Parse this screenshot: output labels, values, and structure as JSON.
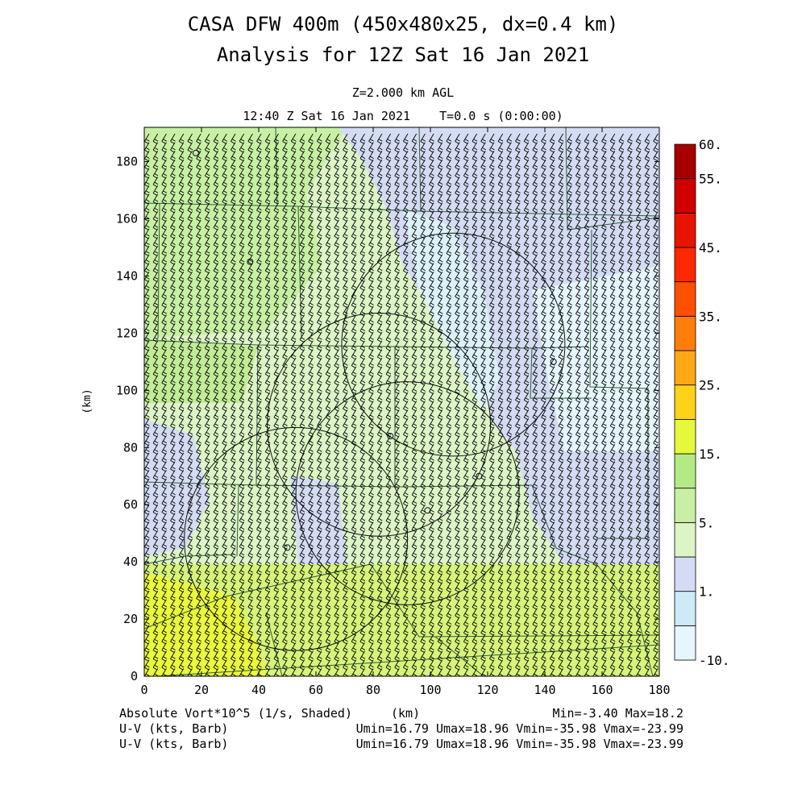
{
  "title_line1": "CASA DFW 400m (450x480x25, dx=0.4 km)",
  "title_line2": "Analysis for 12Z Sat 16 Jan 2021",
  "subtitle_level": "Z=2.000 km AGL",
  "subtitle_time": "12:40 Z Sat 16 Jan 2021    T=0.0 s (0:00:00)",
  "footer": {
    "field_label": "Absolute Vort*10^5 (1/s, Shaded)",
    "xunit": "(km)",
    "minmax": "Min=-3.40 Max=18.2",
    "barb_label_1": "U-V (kts, Barb)",
    "barb_label_2": "U-V (kts, Barb)",
    "uv_stats_1": "Umin=16.79 Umax=18.96 Vmin=-35.98 Vmax=-23.99",
    "uv_stats_2": "Umin=16.79 Umax=18.96 Vmin=-35.98 Vmax=-23.99"
  },
  "chart_data": {
    "type": "heatmap",
    "xlabel": "",
    "ylabel": "(km)",
    "xlim": [
      0,
      180
    ],
    "ylim": [
      0,
      192
    ],
    "xticks": [
      0,
      20,
      40,
      60,
      80,
      100,
      120,
      140,
      160,
      180
    ],
    "yticks": [
      0,
      20,
      40,
      60,
      80,
      100,
      120,
      140,
      160,
      180
    ],
    "field": "Absolute Vort*10^5 (1/s)",
    "min": -3.4,
    "max": 18.2,
    "colorbar": {
      "levels": [
        -10,
        0,
        1,
        2,
        5,
        10,
        15,
        20,
        25,
        30,
        35,
        40,
        45,
        50,
        55,
        60
      ],
      "labels": [
        "-10.",
        "1.",
        "5.",
        "15.",
        "25.",
        "35.",
        "45.",
        "55.",
        "60."
      ],
      "colors": [
        "#e6f6fc",
        "#cfeaf7",
        "#d4dcf4",
        "#ddf5c6",
        "#c8f0a4",
        "#b4ea86",
        "#e6f83c",
        "#ffd21a",
        "#ffa814",
        "#ff7d0a",
        "#ff5000",
        "#ff2800",
        "#e81400",
        "#d00000",
        "#a80000"
      ]
    },
    "wind_barbs": {
      "units": "kts",
      "u_range": [
        16.79,
        18.96
      ],
      "v_range": [
        -35.98,
        -23.99
      ]
    },
    "radar_range_rings": [
      {
        "center": [
          108,
          116
        ],
        "radius": 39
      },
      {
        "center": [
          82,
          88
        ],
        "radius": 39
      },
      {
        "center": [
          92,
          64
        ],
        "radius": 39
      },
      {
        "center": [
          53,
          48
        ],
        "radius": 39
      }
    ],
    "radar_sites": [
      [
        143,
        110
      ],
      [
        86,
        84
      ],
      [
        117,
        70
      ],
      [
        99,
        58
      ],
      [
        50,
        45
      ],
      [
        37,
        145
      ],
      [
        18,
        183
      ]
    ]
  }
}
